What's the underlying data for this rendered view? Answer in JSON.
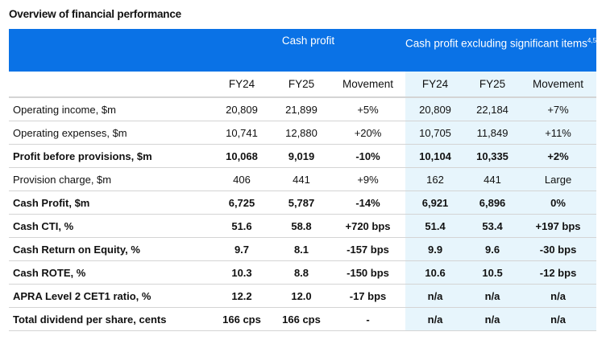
{
  "title": "Overview of financial performance",
  "groups": {
    "cash_profit": "Cash profit",
    "excluding": "Cash profit excluding significant items",
    "excluding_footnote": "4,5"
  },
  "columns": [
    "FY24",
    "FY25",
    "Movement",
    "FY24",
    "FY25",
    "Movement"
  ],
  "rows": [
    {
      "label": "Operating income, $m",
      "bold": false,
      "values": [
        "20,809",
        "21,899",
        "+5%",
        "20,809",
        "22,184",
        "+7%"
      ]
    },
    {
      "label": "Operating expenses, $m",
      "bold": false,
      "values": [
        "10,741",
        "12,880",
        "+20%",
        "10,705",
        "11,849",
        "+11%"
      ]
    },
    {
      "label": "Profit before provisions, $m",
      "bold": true,
      "values": [
        "10,068",
        "9,019",
        "-10%",
        "10,104",
        "10,335",
        "+2%"
      ]
    },
    {
      "label": "Provision charge, $m",
      "bold": false,
      "values": [
        "406",
        "441",
        "+9%",
        "162",
        "441",
        "Large"
      ]
    },
    {
      "label": "Cash Profit, $m",
      "bold": true,
      "values": [
        "6,725",
        "5,787",
        "-14%",
        "6,921",
        "6,896",
        "0%"
      ]
    },
    {
      "label": "Cash CTI, %",
      "bold": true,
      "values": [
        "51.6",
        "58.8",
        "+720 bps",
        "51.4",
        "53.4",
        "+197 bps"
      ]
    },
    {
      "label": "Cash Return on Equity, %",
      "bold": true,
      "values": [
        "9.7",
        "8.1",
        "-157 bps",
        "9.9",
        "9.6",
        "-30 bps"
      ]
    },
    {
      "label": "Cash ROTE, %",
      "bold": true,
      "values": [
        "10.3",
        "8.8",
        "-150 bps",
        "10.6",
        "10.5",
        "-12 bps"
      ]
    },
    {
      "label": "APRA Level 2 CET1 ratio, %",
      "bold": true,
      "values": [
        "12.2",
        "12.0",
        "-17 bps",
        "n/a",
        "n/a",
        "n/a"
      ]
    },
    {
      "label": "Total dividend per share, cents",
      "bold": true,
      "values": [
        "166 cps",
        "166 cps",
        "-",
        "n/a",
        "n/a",
        "n/a"
      ]
    }
  ],
  "colors": {
    "header": "#0a72e6",
    "shade": "#e7f5fc"
  }
}
